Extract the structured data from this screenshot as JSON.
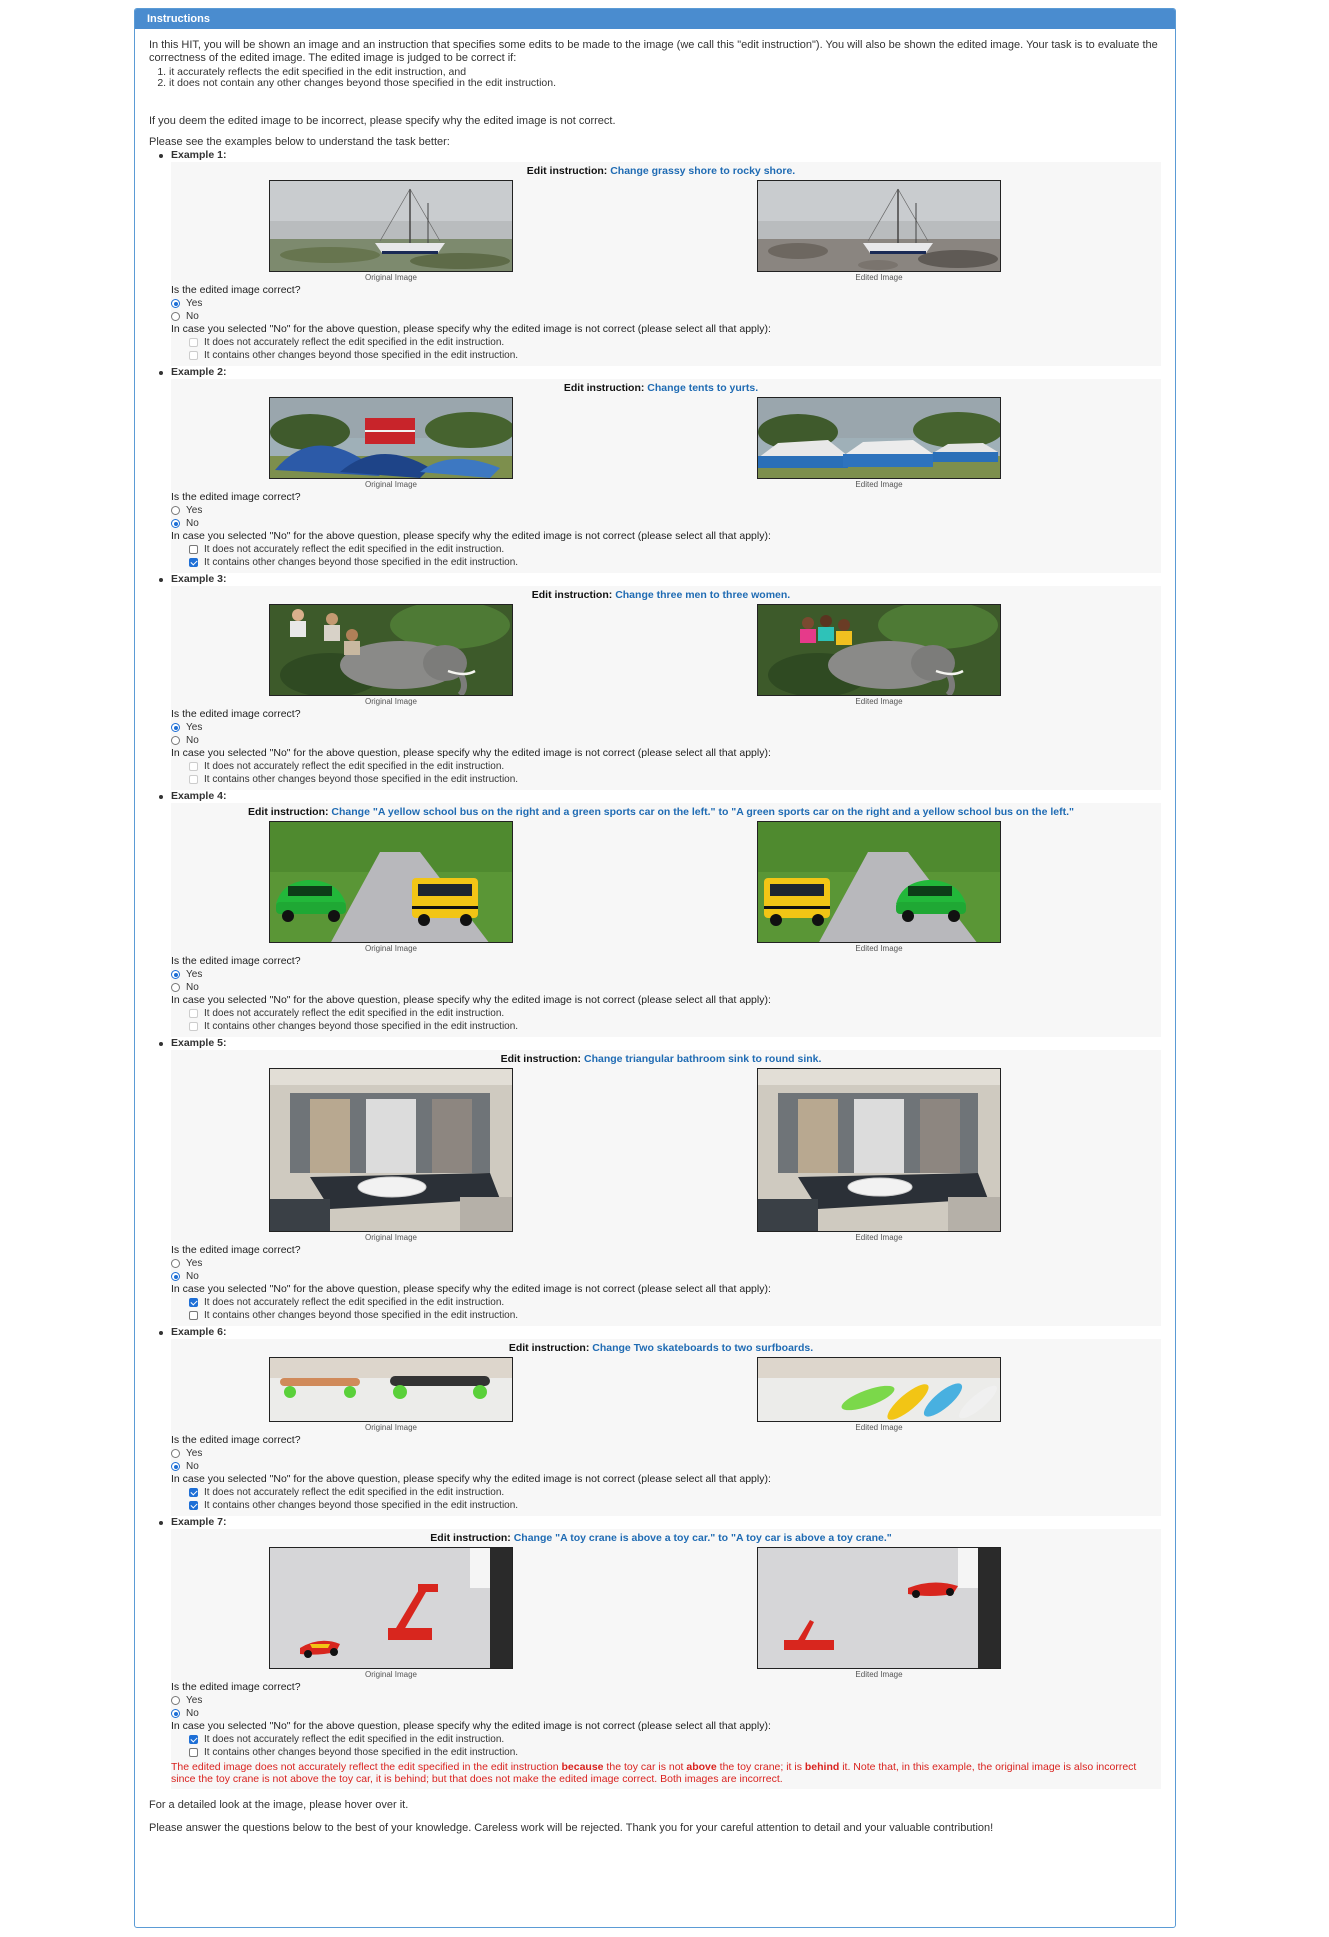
{
  "panel_title": "Instructions",
  "intro": "In this HIT, you will be shown an image and an instruction that specifies some edits to be made to the image (we call this \"edit instruction\"). You will also be shown the edited image. Your task is to evaluate the correctness of the edited image. The edited image is judged to be correct if:",
  "criteria": [
    "it accurately reflects the edit specified in the edit instruction, and",
    "it does not contain any other changes beyond those specified in the edit instruction."
  ],
  "incorrect_note": "If you deem the edited image to be incorrect, please specify why the edited image is not correct.",
  "see_examples": "Please see the examples below to understand the task better:",
  "common": {
    "edit_instruction_label": "Edit instruction:",
    "original_caption": "Original Image",
    "edited_caption": "Edited Image",
    "question": "Is the edited image correct?",
    "yes": "Yes",
    "no": "No",
    "reason_prompt": "In case you selected \"No\" for the above question, please specify why the edited image is not correct (please select all that apply):",
    "reason_1": "It does not accurately reflect the edit specified in the edit instruction.",
    "reason_2": "It contains other changes beyond those specified in the edit instruction."
  },
  "examples": [
    {
      "label": "Example 1:",
      "instruction": "Change grassy shore to rocky shore.",
      "answer": "yes",
      "reason_1": false,
      "reason_2": false,
      "scene": "boat"
    },
    {
      "label": "Example 2:",
      "instruction": "Change tents to yurts.",
      "answer": "no",
      "reason_1": false,
      "reason_2": true,
      "scene": "tents"
    },
    {
      "label": "Example 3:",
      "instruction": "Change three men to three women.",
      "answer": "yes",
      "reason_1": false,
      "reason_2": false,
      "scene": "elephant"
    },
    {
      "label": "Example 4:",
      "instruction": "Change \"A yellow school bus on the right and a green sports car on the left.\" to \"A green sports car on the right and a yellow school bus on the left.\"",
      "answer": "yes",
      "reason_1": false,
      "reason_2": false,
      "scene": "cars"
    },
    {
      "label": "Example 5:",
      "instruction": "Change triangular bathroom sink to round sink.",
      "answer": "no",
      "reason_1": true,
      "reason_2": false,
      "scene": "bathroom"
    },
    {
      "label": "Example 6:",
      "instruction": "Change Two skateboards to two surfboards.",
      "answer": "no",
      "reason_1": true,
      "reason_2": true,
      "scene": "boards"
    },
    {
      "label": "Example 7:",
      "instruction": "Change \"A toy crane is above a toy car.\" to \"A toy car is above a toy crane.\"",
      "answer": "no",
      "reason_1": true,
      "reason_2": false,
      "scene": "toys"
    }
  ],
  "example7_note": {
    "part1": "The edited image does not accurately reflect the edit specified in the edit instruction ",
    "bold1": "because",
    "part2": " the toy car is not ",
    "bold2": "above",
    "part3": " the toy crane; it is ",
    "bold3": "behind",
    "part4": " it. Note that, in this example, the original image is also incorrect since the toy crane is not above the toy car, it is behind; but that does not make the edited image correct. Both images are incorrect."
  },
  "footer_1": "For a detailed look at the image, please hover over it.",
  "footer_2": "Please answer the questions below to the best of your knowledge. Careless work will be rejected. Thank you for your careful attention to detail and your valuable contribution!",
  "colors": {
    "header": "#4a8ccf",
    "instruction_highlight": "#1f6bb3",
    "note_red": "#d9231f",
    "checked": "#1e6fd6"
  }
}
